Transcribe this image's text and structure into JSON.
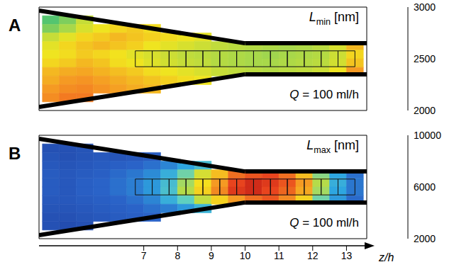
{
  "chart_data": [
    {
      "type": "heatmap",
      "panel": "A",
      "label": "Lmin [nm]",
      "annotation": "Q = 100 ml/h",
      "tick_labels": false,
      "xlim": [
        3.9,
        13.6
      ],
      "ylim": [
        -1.5,
        1.5
      ],
      "x": [
        4.25,
        4.75,
        5.25,
        5.75,
        6.25,
        6.75,
        7.25,
        7.75,
        8.25,
        8.75,
        9.25,
        9.75,
        10.25,
        10.75,
        11.25,
        11.75,
        12.25,
        12.75,
        13.25
      ],
      "y": [
        1.375,
        1.125,
        0.875,
        0.625,
        0.375,
        0.125,
        -0.125,
        -0.375,
        -0.625,
        -0.875,
        -1.125,
        -1.375
      ],
      "values": [
        [
          null,
          null,
          null,
          null,
          null,
          null,
          null,
          null,
          null,
          null,
          null,
          null,
          null,
          null,
          null,
          null,
          null,
          null,
          null
        ],
        [
          2600,
          2550,
          2450,
          null,
          null,
          null,
          null,
          null,
          null,
          null,
          null,
          null,
          null,
          null,
          null,
          null,
          null,
          null,
          null
        ],
        [
          2550,
          2500,
          2420,
          2380,
          2350,
          2330,
          2360,
          null,
          null,
          null,
          null,
          null,
          null,
          null,
          null,
          null,
          null,
          null,
          null
        ],
        [
          2450,
          2400,
          2350,
          2330,
          2300,
          2320,
          2340,
          2360,
          2380,
          2400,
          null,
          null,
          null,
          null,
          null,
          null,
          null,
          null,
          null
        ],
        [
          2400,
          2350,
          2320,
          2300,
          2320,
          2340,
          2380,
          2400,
          2420,
          2440,
          2460,
          2470,
          2480,
          2490,
          2500,
          2490,
          2470,
          2420,
          2300
        ],
        [
          2380,
          2360,
          2330,
          2350,
          2370,
          2400,
          2420,
          2440,
          2460,
          2470,
          2480,
          2490,
          2500,
          2510,
          2500,
          2490,
          2480,
          2440,
          2350
        ],
        [
          2350,
          2330,
          2300,
          2320,
          2360,
          2380,
          2410,
          2430,
          2450,
          2460,
          2480,
          2490,
          2500,
          2500,
          2490,
          2480,
          2470,
          2430,
          2320
        ],
        [
          2300,
          2280,
          2270,
          2290,
          2310,
          2330,
          2360,
          2380,
          2400,
          2420,
          2450,
          2460,
          2470,
          2480,
          2470,
          2460,
          2440,
          2380,
          2250
        ],
        [
          2280,
          2250,
          2240,
          2260,
          2280,
          2300,
          2320,
          2340,
          2360,
          2380,
          null,
          null,
          null,
          null,
          null,
          null,
          null,
          null,
          null
        ],
        [
          2250,
          2230,
          2220,
          2240,
          2260,
          2280,
          2300,
          null,
          null,
          null,
          null,
          null,
          null,
          null,
          null,
          null,
          null,
          null,
          null
        ],
        [
          2230,
          2200,
          2200,
          null,
          null,
          null,
          null,
          null,
          null,
          null,
          null,
          null,
          null,
          null,
          null,
          null,
          null,
          null,
          null
        ],
        [
          null,
          null,
          null,
          null,
          null,
          null,
          null,
          null,
          null,
          null,
          null,
          null,
          null,
          null,
          null,
          null,
          null,
          null,
          null
        ]
      ],
      "colorbar": {
        "range": [
          2000,
          3000
        ],
        "ticks": [
          2000,
          2500,
          3000
        ],
        "colors": [
          "#c81e1e",
          "#f04a1e",
          "#f59a23",
          "#f2e51e",
          "#a8d84a",
          "#3fc07a",
          "#35b6c8",
          "#2f7dc4",
          "#2451a3"
        ]
      },
      "walls": {
        "z": [
          3.9,
          10,
          13.6
        ],
        "half_width": [
          1.4,
          0.45,
          0.45
        ]
      },
      "windows": {
        "x_edges": [
          6.75,
          7.25,
          7.75,
          8.25,
          8.75,
          9.25,
          9.75,
          10.25,
          10.75,
          11.25,
          11.75,
          12.25,
          12.75,
          13.25
        ],
        "y": [
          -0.23,
          0.23
        ]
      }
    },
    {
      "type": "heatmap",
      "panel": "B",
      "label": "Lmax [nm]",
      "annotation": "Q = 100 ml/h",
      "tick_labels": "x",
      "xlim": [
        3.9,
        13.6
      ],
      "ylim": [
        -1.5,
        1.5
      ],
      "xticks": [
        7,
        8,
        9,
        10,
        11,
        12,
        13
      ],
      "x_label": "z/h",
      "x": [
        4.25,
        4.75,
        5.25,
        5.75,
        6.25,
        6.75,
        7.25,
        7.75,
        8.25,
        8.75,
        9.25,
        9.75,
        10.25,
        10.75,
        11.25,
        11.75,
        12.25,
        12.75,
        13.25
      ],
      "y": [
        1.375,
        1.125,
        0.875,
        0.625,
        0.375,
        0.125,
        -0.125,
        -0.375,
        -0.625,
        -0.875,
        -1.125,
        -1.375
      ],
      "values": [
        [
          null,
          null,
          null,
          null,
          null,
          null,
          null,
          null,
          null,
          null,
          null,
          null,
          null,
          null,
          null,
          null,
          null,
          null,
          null
        ],
        [
          2500,
          2500,
          2600,
          null,
          null,
          null,
          null,
          null,
          null,
          null,
          null,
          null,
          null,
          null,
          null,
          null,
          null,
          null,
          null
        ],
        [
          2600,
          2500,
          2600,
          2700,
          2600,
          2700,
          2800,
          null,
          null,
          null,
          null,
          null,
          null,
          null,
          null,
          null,
          null,
          null,
          null
        ],
        [
          2700,
          2600,
          2700,
          2800,
          2900,
          3000,
          3200,
          3500,
          4000,
          4500,
          null,
          null,
          null,
          null,
          null,
          null,
          null,
          null,
          null
        ],
        [
          2800,
          2700,
          2800,
          2900,
          3100,
          3300,
          3600,
          4200,
          5200,
          6500,
          7500,
          8500,
          8800,
          9000,
          8500,
          7500,
          5500,
          4000,
          3200
        ],
        [
          2800,
          2700,
          2900,
          3000,
          3200,
          3400,
          3800,
          4500,
          5800,
          7000,
          8000,
          9000,
          9500,
          9200,
          8800,
          8000,
          6000,
          4200,
          3300
        ],
        [
          2800,
          2700,
          2900,
          3000,
          3200,
          3400,
          3800,
          4600,
          6000,
          7200,
          8200,
          9200,
          9500,
          9000,
          8600,
          7800,
          5800,
          4000,
          3300
        ],
        [
          2700,
          2700,
          2800,
          2900,
          3000,
          3200,
          3500,
          4200,
          5000,
          6200,
          7200,
          8000,
          8500,
          8800,
          8200,
          7200,
          5200,
          3800,
          3100
        ],
        [
          2600,
          2600,
          2700,
          2800,
          2900,
          3000,
          3200,
          3400,
          3800,
          4300,
          null,
          null,
          null,
          null,
          null,
          null,
          null,
          null,
          null
        ],
        [
          2500,
          2500,
          2600,
          2700,
          2800,
          2900,
          3000,
          null,
          null,
          null,
          null,
          null,
          null,
          null,
          null,
          null,
          null,
          null,
          null
        ],
        [
          2500,
          2400,
          2500,
          null,
          null,
          null,
          null,
          null,
          null,
          null,
          null,
          null,
          null,
          null,
          null,
          null,
          null,
          null,
          null
        ],
        [
          null,
          null,
          null,
          null,
          null,
          null,
          null,
          null,
          null,
          null,
          null,
          null,
          null,
          null,
          null,
          null,
          null,
          null,
          null
        ]
      ],
      "colorbar": {
        "range": [
          2000,
          10000
        ],
        "ticks": [
          2000,
          6000,
          10000
        ],
        "colors": [
          "#1f3fa0",
          "#2a63c8",
          "#2ea6e0",
          "#5fd0c0",
          "#b5dc4a",
          "#f5df1e",
          "#f59a23",
          "#e8441e",
          "#b81414"
        ]
      },
      "walls": {
        "z": [
          3.9,
          10,
          13.6
        ],
        "half_width": [
          1.4,
          0.45,
          0.45
        ]
      },
      "windows": {
        "x_edges": [
          6.75,
          7.25,
          7.75,
          8.25,
          8.75,
          9.25,
          9.75,
          10.25,
          10.75,
          11.25,
          11.75,
          12.25,
          12.75,
          13.25
        ],
        "y": [
          -0.23,
          0.23
        ]
      }
    }
  ]
}
